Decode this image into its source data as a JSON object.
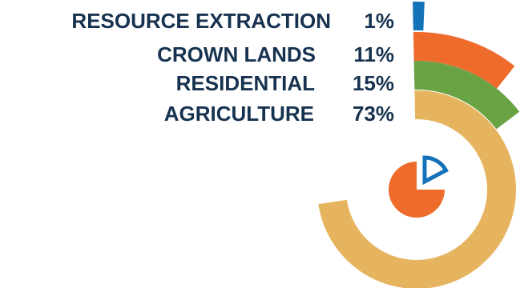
{
  "chart_data": {
    "type": "radial-bar",
    "categories": [
      "RESOURCE EXTRACTION",
      "CROWN LANDS",
      "RESIDENTIAL",
      "AGRICULTURE"
    ],
    "values": [
      1,
      11,
      15,
      73
    ],
    "value_labels": [
      "1%",
      "11%",
      "15%",
      "73%"
    ],
    "unit": "%",
    "colors": [
      "#1472b8",
      "#ee6b2c",
      "#6aa343",
      "#e6b45e"
    ],
    "inner_icon": {
      "name": "pie-chart-icon",
      "colors": {
        "slice": "#ee6b2c",
        "outline": "#1472b8"
      }
    }
  }
}
